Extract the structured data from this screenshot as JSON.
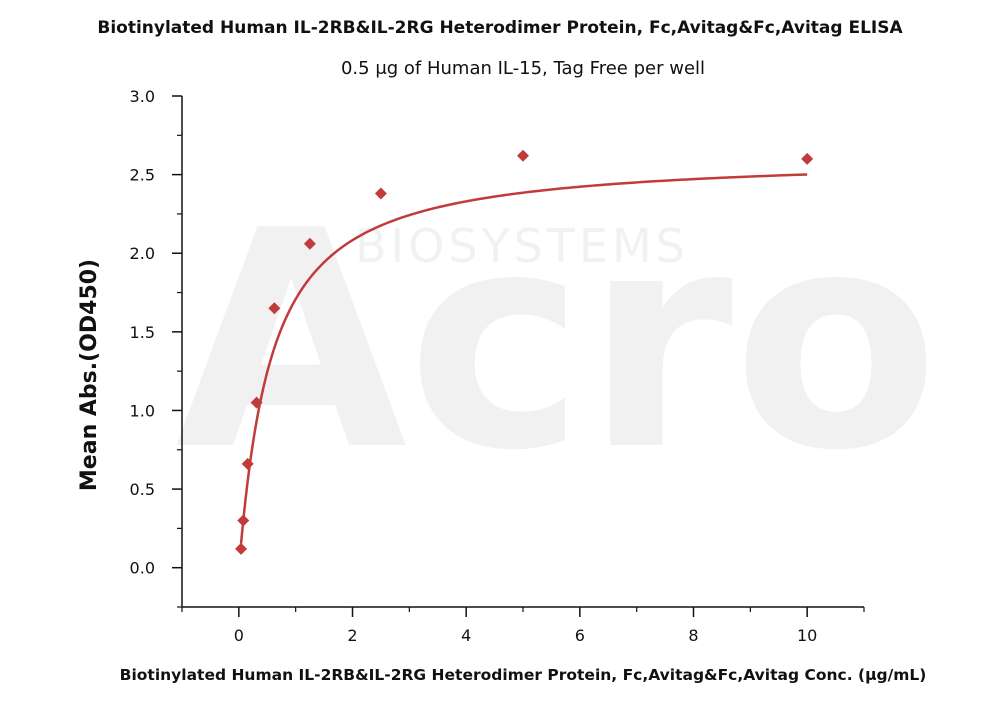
{
  "chart_data": {
    "type": "scatter",
    "title": "Biotinylated Human IL-2RB&IL-2RG Heterodimer Protein, Fc,Avitag&Fc,Avitag ELISA",
    "subtitle": "0.5 μg of Human IL-15, Tag Free per well",
    "xlabel": "Biotinylated Human IL-2RB&IL-2RG Heterodimer Protein, Fc,Avitag&Fc,Avitag Conc. (μg/mL)",
    "ylabel": "Mean Abs.(OD450)",
    "xlim": [
      -1,
      11
    ],
    "ylim": [
      -0.25,
      3.0
    ],
    "x_ticks": [
      0,
      2,
      4,
      6,
      8,
      10
    ],
    "y_ticks": [
      0.0,
      0.5,
      1.0,
      1.5,
      2.0,
      2.5,
      3.0
    ],
    "x_tick_labels": [
      "0",
      "2",
      "4",
      "6",
      "8",
      "10"
    ],
    "y_tick_labels": [
      "0.0",
      "0.5",
      "1.0",
      "1.5",
      "2.0",
      "2.5",
      "3.0"
    ],
    "grid": false,
    "series": [
      {
        "color": "#c23b3b",
        "marker": "diamond",
        "fit": "hyperbolic",
        "x": [
          0.039,
          0.078,
          0.156,
          0.313,
          0.625,
          1.25,
          2.5,
          5,
          10
        ],
        "y": [
          0.12,
          0.3,
          0.66,
          1.05,
          1.65,
          2.06,
          2.38,
          2.62,
          2.6
        ]
      }
    ],
    "watermark": "Acro BIOSYSTEMS"
  }
}
